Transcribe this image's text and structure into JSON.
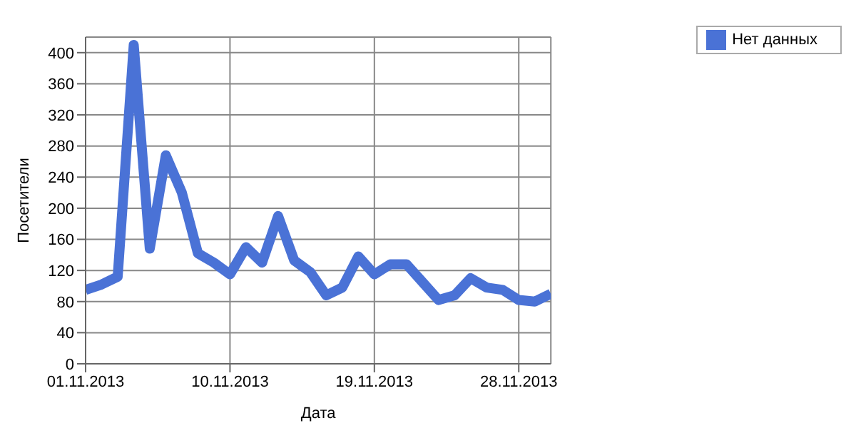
{
  "chart_data": {
    "type": "line",
    "xlabel": "Дата",
    "ylabel": "Посетители",
    "x": [
      "2013-11-01",
      "2013-11-02",
      "2013-11-03",
      "2013-11-04",
      "2013-11-05",
      "2013-11-06",
      "2013-11-07",
      "2013-11-08",
      "2013-11-09",
      "2013-11-10",
      "2013-11-11",
      "2013-11-12",
      "2013-11-13",
      "2013-11-14",
      "2013-11-15",
      "2013-11-16",
      "2013-11-17",
      "2013-11-18",
      "2013-11-19",
      "2013-11-20",
      "2013-11-21",
      "2013-11-22",
      "2013-11-23",
      "2013-11-24",
      "2013-11-25",
      "2013-11-26",
      "2013-11-27",
      "2013-11-28",
      "2013-11-29",
      "2013-11-30"
    ],
    "series": [
      {
        "name": "Нет данных",
        "color": "#4a72d6",
        "values": [
          95,
          102,
          112,
          410,
          148,
          268,
          220,
          142,
          130,
          115,
          150,
          130,
          190,
          133,
          118,
          88,
          98,
          138,
          115,
          128,
          128,
          105,
          82,
          88,
          110,
          98,
          95,
          82,
          80,
          90
        ]
      }
    ],
    "xlim": [
      "2013-11-01",
      "2013-11-30"
    ],
    "xticks": [
      {
        "value": "2013-11-01",
        "label": "01.11.2013"
      },
      {
        "value": "2013-11-10",
        "label": "10.11.2013"
      },
      {
        "value": "2013-11-19",
        "label": "19.11.2013"
      },
      {
        "value": "2013-11-28",
        "label": "28.11.2013"
      }
    ],
    "ylim": [
      0,
      420
    ],
    "yticks": [
      0,
      40,
      80,
      120,
      160,
      200,
      240,
      280,
      320,
      360,
      400
    ],
    "grid": true,
    "legend": "top right",
    "marker": "none",
    "line_style": "solid"
  }
}
